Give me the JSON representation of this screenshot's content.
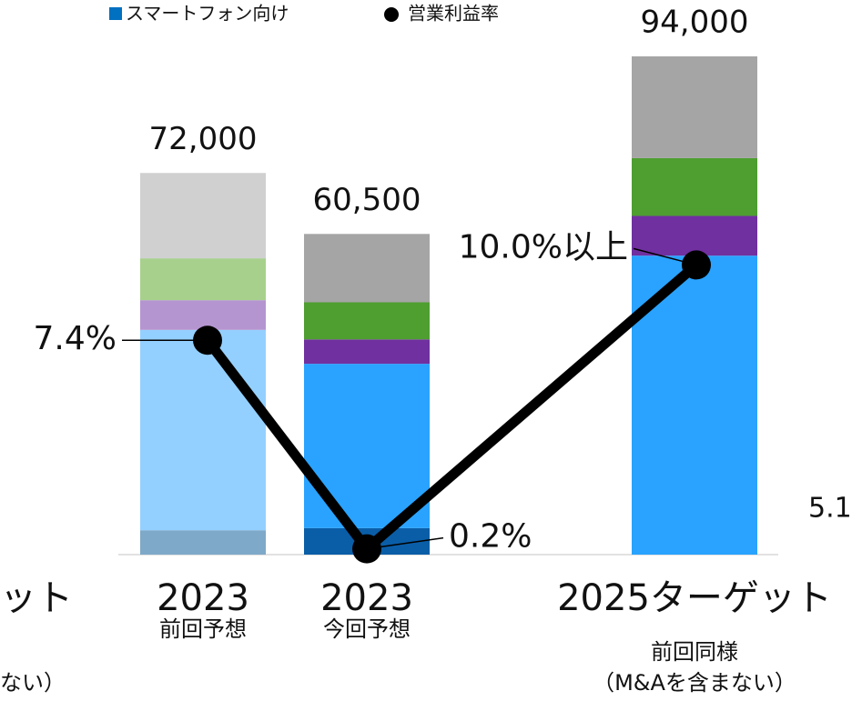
{
  "chart_data": {
    "type": "stacked_bar_line",
    "legend": [
      "スマートフォン向け",
      "営業利益率"
    ],
    "categories": [
      "2023",
      "2023",
      "2025ターゲット"
    ],
    "category_notes": [
      [
        "前回予想"
      ],
      [
        "今回予想"
      ],
      [
        "前回同様",
        "（M&Aを含まない）"
      ]
    ],
    "total_labels": [
      "72,000",
      "60,500",
      "94,000"
    ],
    "ylim": [
      0,
      94000
    ],
    "y2lim": [
      0,
      17.2
    ],
    "series": [
      {
        "colors": [
          "#7fa9c8",
          "#0a5ea8",
          "#0a5ea8"
        ],
        "values": [
          4600,
          5000,
          0
        ]
      },
      {
        "name": "スマートフォン向け",
        "color": "#0070c0",
        "colors": [
          "#94d0ff",
          "#29a3ff",
          "#29a3ff"
        ],
        "values": [
          37800,
          31000,
          56400
        ]
      },
      {
        "colors": [
          "#b595d0",
          "#7030a0",
          "#7030a0"
        ],
        "values": [
          5600,
          4600,
          7500
        ]
      },
      {
        "colors": [
          "#a8d08d",
          "#4e9e30",
          "#4e9e30"
        ],
        "values": [
          7900,
          7000,
          10900
        ]
      },
      {
        "colors": [
          "#d0d0d0",
          "#a5a5a5",
          "#a5a5a5"
        ],
        "values": [
          16100,
          12900,
          19200
        ]
      }
    ],
    "line": {
      "name": "営業利益率",
      "color": "#000000",
      "axis": "y2",
      "values": [
        7.4,
        0.2,
        10.0
      ],
      "value_labels": [
        "7.4%",
        "0.2%",
        "10.0%以上"
      ]
    },
    "cropped_texts": [
      "ット",
      "ない）",
      "5.1"
    ]
  }
}
